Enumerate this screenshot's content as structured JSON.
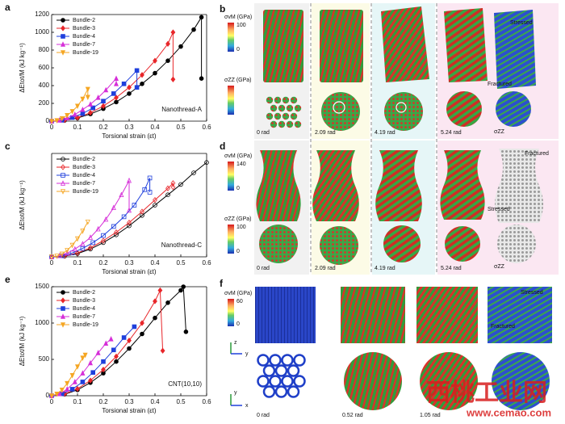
{
  "chart_data": [
    {
      "type": "line",
      "label": "a",
      "annotation": "Nanothread-A",
      "xlabel": "Torsional strain (εt)",
      "ylabel": "ΔEtot/M (kJ kg⁻¹)",
      "filled": true,
      "legend": "upper left",
      "xlim": [
        0,
        0.6
      ],
      "xticks": [
        0,
        0.1,
        0.2,
        0.3,
        0.4,
        0.5,
        0.6
      ],
      "ylim": [
        0,
        1200
      ],
      "yticks": [
        0,
        200,
        400,
        600,
        800,
        1000,
        1200
      ],
      "series": [
        {
          "name": "Bundle-2",
          "color": "#000000",
          "marker": "circle",
          "x": [
            0,
            0.05,
            0.1,
            0.15,
            0.2,
            0.25,
            0.3,
            0.35,
            0.4,
            0.45,
            0.5,
            0.55,
            0.58,
            0.58
          ],
          "values": [
            0,
            8,
            35,
            80,
            140,
            215,
            310,
            420,
            540,
            680,
            840,
            1030,
            1170,
            480
          ]
        },
        {
          "name": "Bundle-3",
          "color": "#e8262a",
          "marker": "diamond",
          "x": [
            0,
            0.05,
            0.1,
            0.15,
            0.2,
            0.25,
            0.3,
            0.35,
            0.4,
            0.45,
            0.47,
            0.47
          ],
          "values": [
            0,
            10,
            40,
            95,
            170,
            265,
            380,
            520,
            680,
            870,
            1000,
            470
          ]
        },
        {
          "name": "Bundle-4",
          "color": "#1f3fdc",
          "marker": "square",
          "x": [
            0,
            0.04,
            0.08,
            0.12,
            0.16,
            0.2,
            0.24,
            0.28,
            0.33,
            0.33
          ],
          "values": [
            0,
            10,
            40,
            85,
            150,
            225,
            310,
            420,
            570,
            380
          ]
        },
        {
          "name": "Bundle-7",
          "color": "#d62fd8",
          "marker": "triangle-up",
          "x": [
            0,
            0.03,
            0.06,
            0.09,
            0.12,
            0.15,
            0.18,
            0.21,
            0.25,
            0.25
          ],
          "values": [
            0,
            10,
            35,
            75,
            130,
            190,
            265,
            350,
            480,
            420
          ]
        },
        {
          "name": "Bundle-19",
          "color": "#f5a623",
          "marker": "triangle-down",
          "x": [
            0,
            0.02,
            0.04,
            0.06,
            0.08,
            0.1,
            0.12,
            0.14,
            0.14
          ],
          "values": [
            0,
            8,
            30,
            65,
            110,
            170,
            250,
            360,
            270
          ]
        }
      ]
    },
    {
      "type": "line",
      "label": "c",
      "annotation": "Nanothread-C",
      "xlabel": "Torsional strain (εt)",
      "ylabel": "ΔEtot/M (kJ kg⁻¹)",
      "filled": false,
      "legend": "upper left",
      "xlim": [
        0,
        0.6
      ],
      "xticks": [
        0,
        0.1,
        0.2,
        0.3,
        0.4,
        0.5,
        0.6
      ],
      "ylim": [
        0,
        800
      ],
      "series": [
        {
          "name": "Bundle-2",
          "color": "#000000",
          "marker": "circle",
          "x": [
            0,
            0.05,
            0.1,
            0.15,
            0.2,
            0.25,
            0.3,
            0.35,
            0.4,
            0.45,
            0.5,
            0.55,
            0.6
          ],
          "values": [
            0,
            5,
            25,
            60,
            110,
            170,
            240,
            320,
            400,
            480,
            560,
            650,
            730
          ]
        },
        {
          "name": "Bundle-3",
          "color": "#e8262a",
          "marker": "diamond",
          "x": [
            0,
            0.05,
            0.1,
            0.15,
            0.2,
            0.25,
            0.3,
            0.35,
            0.4,
            0.45,
            0.47,
            0.47
          ],
          "values": [
            0,
            6,
            30,
            70,
            125,
            190,
            265,
            350,
            440,
            530,
            570,
            540
          ]
        },
        {
          "name": "Bundle-4",
          "color": "#1f3fdc",
          "marker": "square",
          "x": [
            0,
            0.04,
            0.08,
            0.12,
            0.16,
            0.2,
            0.24,
            0.28,
            0.32,
            0.36,
            0.38,
            0.38
          ],
          "values": [
            0,
            8,
            30,
            65,
            110,
            165,
            235,
            310,
            400,
            520,
            610,
            500
          ]
        },
        {
          "name": "Bundle-7",
          "color": "#d62fd8",
          "marker": "triangle-up",
          "x": [
            0,
            0.03,
            0.06,
            0.09,
            0.12,
            0.15,
            0.18,
            0.21,
            0.24,
            0.27,
            0.3,
            0.3
          ],
          "values": [
            0,
            8,
            28,
            60,
            100,
            150,
            215,
            290,
            380,
            480,
            590,
            360
          ]
        },
        {
          "name": "Bundle-19",
          "color": "#f5a623",
          "marker": "triangle-down",
          "x": [
            0,
            0.02,
            0.04,
            0.06,
            0.08,
            0.1,
            0.12,
            0.14
          ],
          "values": [
            0,
            6,
            22,
            50,
            90,
            140,
            200,
            270
          ]
        }
      ]
    },
    {
      "type": "line",
      "label": "e",
      "annotation": "CNT(10,10)",
      "xlabel": "Torsional strain (εt)",
      "ylabel": "ΔEtot/M (kJ kg⁻¹)",
      "filled": true,
      "legend": "upper left",
      "xlim": [
        0,
        0.6
      ],
      "xticks": [
        0,
        0.1,
        0.2,
        0.3,
        0.4,
        0.5,
        0.6
      ],
      "ylim": [
        0,
        1500
      ],
      "yticks": [
        0,
        500,
        1000,
        1500
      ],
      "series": [
        {
          "name": "Bundle-2",
          "color": "#000000",
          "marker": "circle",
          "x": [
            0,
            0.05,
            0.1,
            0.15,
            0.2,
            0.25,
            0.3,
            0.35,
            0.4,
            0.45,
            0.5,
            0.51,
            0.52
          ],
          "values": [
            0,
            20,
            80,
            180,
            310,
            470,
            650,
            850,
            1070,
            1280,
            1450,
            1500,
            880
          ]
        },
        {
          "name": "Bundle-3",
          "color": "#e8262a",
          "marker": "diamond",
          "x": [
            0,
            0.05,
            0.1,
            0.15,
            0.2,
            0.25,
            0.3,
            0.35,
            0.4,
            0.42,
            0.43
          ],
          "values": [
            0,
            25,
            95,
            210,
            360,
            540,
            760,
            1000,
            1300,
            1450,
            620
          ]
        },
        {
          "name": "Bundle-4",
          "color": "#1f3fdc",
          "marker": "square",
          "x": [
            0,
            0.04,
            0.08,
            0.12,
            0.16,
            0.2,
            0.24,
            0.28,
            0.32
          ],
          "values": [
            0,
            25,
            90,
            190,
            320,
            470,
            630,
            800,
            950
          ]
        },
        {
          "name": "Bundle-7",
          "color": "#d62fd8",
          "marker": "triangle-up",
          "x": [
            0,
            0.03,
            0.06,
            0.09,
            0.12,
            0.15,
            0.18,
            0.21,
            0.23
          ],
          "values": [
            0,
            25,
            90,
            190,
            310,
            450,
            590,
            720,
            780
          ]
        },
        {
          "name": "Bundle-19",
          "color": "#f5a623",
          "marker": "triangle-down",
          "x": [
            0,
            0.02,
            0.04,
            0.06,
            0.08,
            0.1,
            0.12,
            0.13
          ],
          "values": [
            0,
            25,
            80,
            170,
            280,
            400,
            520,
            560
          ]
        }
      ]
    }
  ],
  "panel_b": {
    "label": "b",
    "colorbar_vm": {
      "title": "σvM (GPa)",
      "max": 100,
      "min": 0
    },
    "colorbar_zz": {
      "title": "σZZ (GPa)"
    },
    "captions": [
      "0 rad",
      "2.09 rad",
      "4.19 rad",
      "5.24 rad"
    ],
    "stressed": "Stressed",
    "fractured": "Fractured",
    "zz": "σZZ"
  },
  "panel_d": {
    "label": "d",
    "colorbar_vm": {
      "title": "σvM (GPa)",
      "max": 140,
      "min": 0
    },
    "colorbar_zz": {
      "title": "σZZ (GPa)",
      "max": 100,
      "min": 0
    },
    "captions": [
      "0 rad",
      "2.09 rad",
      "4.19 rad",
      "5.24 rad"
    ],
    "fractured": "Fractured",
    "stressed": "Stressed",
    "zz": "σZZ"
  },
  "panel_f": {
    "label": "f",
    "colorbar_vm": {
      "title": "σvM (GPa)",
      "max": 60,
      "min": 0
    },
    "captions": [
      "0 rad",
      "0.52 rad",
      "1.05 rad"
    ],
    "stressed": "Stressed",
    "fractured": "Fractured",
    "axes": [
      "z",
      "y",
      "y",
      "x"
    ]
  },
  "watermark": {
    "logo": "西桃工业网",
    "url": "www.cemao.com"
  }
}
